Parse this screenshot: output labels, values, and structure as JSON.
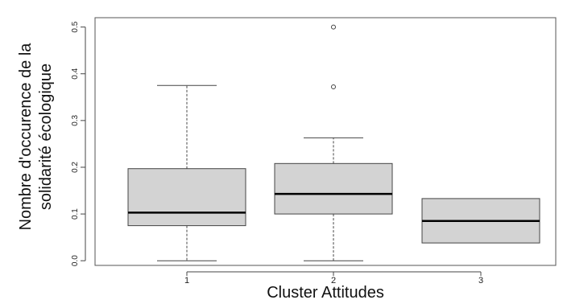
{
  "chart_data": {
    "type": "box",
    "title": "",
    "xlabel": "Cluster Attitudes",
    "ylabel_lines": [
      "Nombre d'occurence de la",
      "solidarité écologique"
    ],
    "ylim": [
      -0.01,
      0.52
    ],
    "yticks": [
      "0.0",
      "0.1",
      "0.2",
      "0.3",
      "0.4",
      "0.5"
    ],
    "grid": false,
    "categories": [
      "1",
      "2",
      "3"
    ],
    "boxes": [
      {
        "category": "1",
        "whisker_low": 0.0,
        "q1": 0.075,
        "median": 0.103,
        "q3": 0.197,
        "whisker_high": 0.375,
        "outliers": []
      },
      {
        "category": "2",
        "whisker_low": 0.0,
        "q1": 0.1,
        "median": 0.143,
        "q3": 0.208,
        "whisker_high": 0.263,
        "outliers": [
          0.372,
          0.5
        ]
      },
      {
        "category": "3",
        "whisker_low": 0.038,
        "q1": 0.038,
        "median": 0.085,
        "q3": 0.133,
        "whisker_high": 0.133,
        "outliers": []
      }
    ],
    "colors": {
      "box_fill": "#d3d3d3",
      "stroke": "#444444",
      "median": "#000000"
    }
  }
}
